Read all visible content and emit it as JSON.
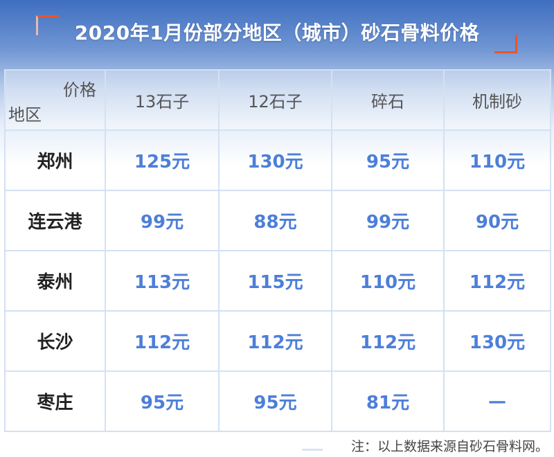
{
  "title": "2020年1月份部分地区（城市）砂石骨料价格",
  "table": {
    "corner_top": "价格",
    "corner_bottom": "地区",
    "columns": [
      "13石子",
      "12石子",
      "碎石",
      "机制砂"
    ],
    "rows": [
      {
        "city": "郑州",
        "prices": [
          "125元",
          "130元",
          "95元",
          "110元"
        ]
      },
      {
        "city": "连云港",
        "prices": [
          "99元",
          "88元",
          "99元",
          "90元"
        ]
      },
      {
        "city": "泰州",
        "prices": [
          "113元",
          "115元",
          "110元",
          "112元"
        ]
      },
      {
        "city": "长沙",
        "prices": [
          "112元",
          "112元",
          "112元",
          "130元"
        ]
      },
      {
        "city": "枣庄",
        "prices": [
          "95元",
          "95元",
          "81元",
          "—"
        ]
      }
    ]
  },
  "note": "注：以上数据来源自砂石骨料网。",
  "colors": {
    "price": "#4d7fd8",
    "accent": "#e8552f",
    "header_bg": "#3f6fc0"
  }
}
